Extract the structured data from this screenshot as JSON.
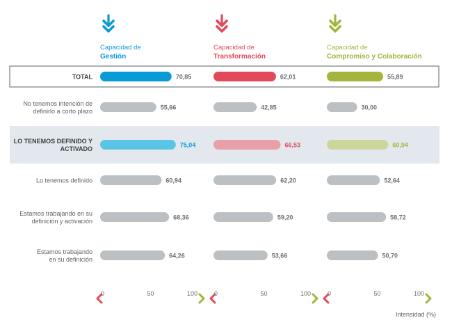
{
  "chart_data": {
    "type": "bar",
    "series": [
      {
        "name_line1": "Capacidad de",
        "name_line2": "Gestión",
        "color": "#0a9bd6",
        "light_color": "#5bc5e6"
      },
      {
        "name_line1": "Capacidad de",
        "name_line2": "Transformación",
        "color": "#e04a5a",
        "light_color": "#e8a0a8"
      },
      {
        "name_line1": "Capacidad de",
        "name_line2": "Compromiso y Colaboración",
        "color": "#a4b43c",
        "light_color": "#ccd69a"
      }
    ],
    "rows": [
      {
        "label": [
          "TOTAL"
        ],
        "bold": true,
        "style": "total",
        "values": [
          70.85,
          62.01,
          55.89
        ],
        "value_labels": [
          "70,85",
          "62,01",
          "55,89"
        ]
      },
      {
        "label": [
          "No tenemos intención de",
          "definirlo a corto plazo"
        ],
        "bold": false,
        "style": "gray",
        "values": [
          55.66,
          42.85,
          30.0
        ],
        "value_labels": [
          "55,66",
          "42,85",
          "30,00"
        ]
      },
      {
        "label": [
          "LO TENEMOS DEFINIDO Y",
          "ACTIVADO"
        ],
        "bold": true,
        "style": "highlight",
        "values": [
          75.04,
          66.53,
          60.94
        ],
        "value_labels": [
          "75,04",
          "66,53",
          "60,94"
        ]
      },
      {
        "label": [
          "Lo tenemos definido"
        ],
        "bold": false,
        "style": "gray",
        "values": [
          60.94,
          62.2,
          52.64
        ],
        "value_labels": [
          "60,94",
          "62,20",
          "52,64"
        ]
      },
      {
        "label": [
          "Estamos trabajando en su",
          "definición y activación"
        ],
        "bold": false,
        "style": "gray",
        "values": [
          68.36,
          59.2,
          58.72
        ],
        "value_labels": [
          "68,36",
          "59,20",
          "58,72"
        ]
      },
      {
        "label": [
          "Estamos trabajando",
          "en su definición"
        ],
        "bold": false,
        "style": "gray",
        "values": [
          64.26,
          53.66,
          50.7
        ],
        "value_labels": [
          "64,26",
          "53,66",
          "50,70"
        ]
      }
    ],
    "xlim": [
      0,
      100
    ],
    "ticks": [
      "0",
      "50",
      "100"
    ],
    "axis_title": "Intensidad (%)",
    "gray_bar_color": "#bcc0c2",
    "highlight_band_color": "#e3e8ee",
    "total_border_color": "#8a8f93"
  }
}
